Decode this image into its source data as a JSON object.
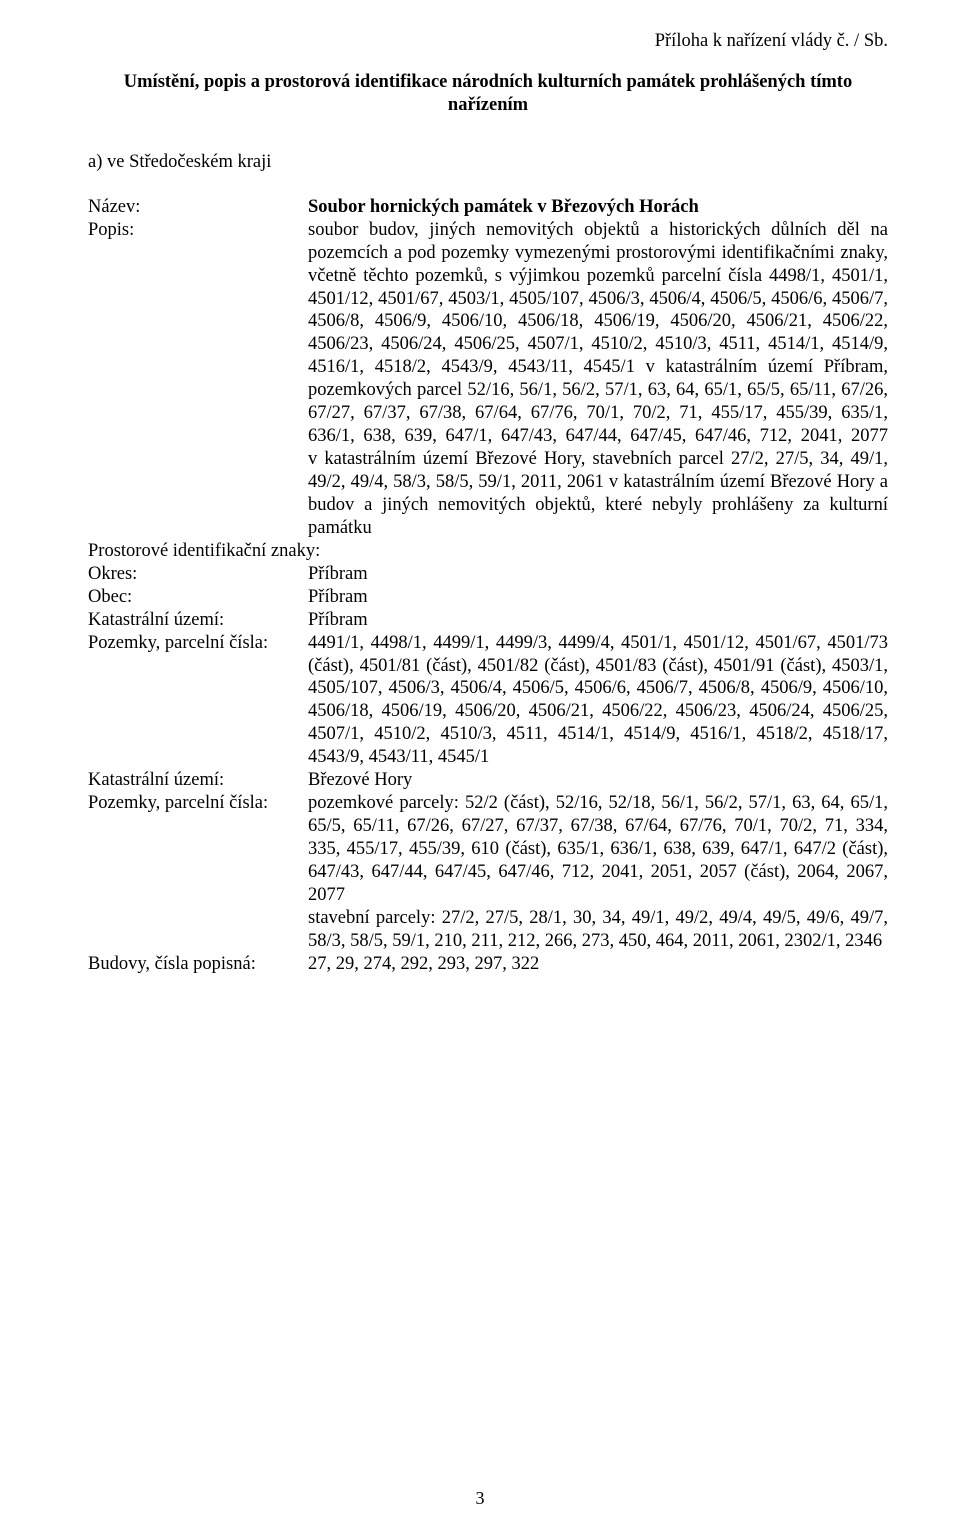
{
  "attachment_line": "Příloha k nařízení vlády č.           /          Sb.",
  "heading": "Umístění, popis a prostorová identifikace národních kulturních památek prohlášených tímto nařízením",
  "section_a": "a) ve Středočeském kraji",
  "labels": {
    "nazev": "Název:",
    "popis": "Popis:",
    "prostorove": "Prostorové identifikační znaky:",
    "okres": "Okres:",
    "obec": "Obec:",
    "ku": "Katastrální území:",
    "parc": "Pozemky, parcelní čísla:",
    "budovy": "Budovy, čísla popisná:"
  },
  "nazev_value": "Soubor hornických památek v Březových Horách",
  "popis_value": "soubor budov, jiných nemovitých objektů a historických důlních děl na pozemcích a pod pozemky vymezenými prostorovými identifikačními znaky, včetně těchto pozemků, s výjimkou pozemků parcelní čísla 4498/1, 4501/1, 4501/12, 4501/67, 4503/1, 4505/107, 4506/3, 4506/4, 4506/5, 4506/6, 4506/7, 4506/8, 4506/9, 4506/10, 4506/18, 4506/19, 4506/20, 4506/21, 4506/22, 4506/23, 4506/24, 4506/25, 4507/1, 4510/2, 4510/3, 4511, 4514/1, 4514/9, 4516/1, 4518/2, 4543/9, 4543/11, 4545/1 v katastrálním území Příbram, pozemkových parcel 52/16, 56/1, 56/2, 57/1, 63, 64, 65/1, 65/5, 65/11, 67/26, 67/27, 67/37, 67/38, 67/64, 67/76, 70/1, 70/2, 71, 455/17, 455/39, 635/1, 636/1, 638, 639, 647/1, 647/43, 647/44, 647/45, 647/46, 712, 2041, 2077 v katastrálním území Březové Hory, stavebních parcel 27/2, 27/5, 34, 49/1, 49/2, 49/4, 58/3, 58/5, 59/1, 2011, 2061 v katastrálním území Březové Hory a budov a jiných nemovitých objektů, které nebyly prohlášeny za kulturní památku",
  "okres_value": "Příbram",
  "obec_value": "Příbram",
  "ku1_value": "Příbram",
  "parc1_value": "4491/1, 4498/1, 4499/1, 4499/3, 4499/4, 4501/1, 4501/12, 4501/67, 4501/73 (část), 4501/81 (část), 4501/82 (část), 4501/83 (část), 4501/91 (část), 4503/1, 4505/107, 4506/3, 4506/4, 4506/5, 4506/6, 4506/7, 4506/8, 4506/9, 4506/10, 4506/18, 4506/19, 4506/20, 4506/21, 4506/22, 4506/23, 4506/24, 4506/25, 4507/1, 4510/2, 4510/3, 4511, 4514/1, 4514/9, 4516/1, 4518/2, 4518/17, 4543/9, 4543/11, 4545/1",
  "ku2_value": "Březové Hory",
  "parc2_a": "pozemkové parcely: 52/2 (část), 52/16, 52/18, 56/1, 56/2, 57/1, 63, 64, 65/1, 65/5, 65/11, 67/26, 67/27, 67/37, 67/38, 67/64, 67/76, 70/1, 70/2, 71, 334, 335, 455/17, 455/39, 610 (část), 635/1, 636/1, 638, 639, 647/1, 647/2 (část), 647/43, 647/44, 647/45, 647/46, 712, 2041, 2051, 2057 (část), 2064, 2067, 2077",
  "parc2_b": "stavební parcely: 27/2, 27/5, 28/1, 30, 34, 49/1, 49/2, 49/4, 49/5, 49/6, 49/7, 58/3, 58/5, 59/1, 210, 211, 212, 266, 273, 450, 464, 2011, 2061, 2302/1, 2346",
  "budovy_value": "27, 29, 274, 292, 293, 297, 322",
  "page_number": "3"
}
